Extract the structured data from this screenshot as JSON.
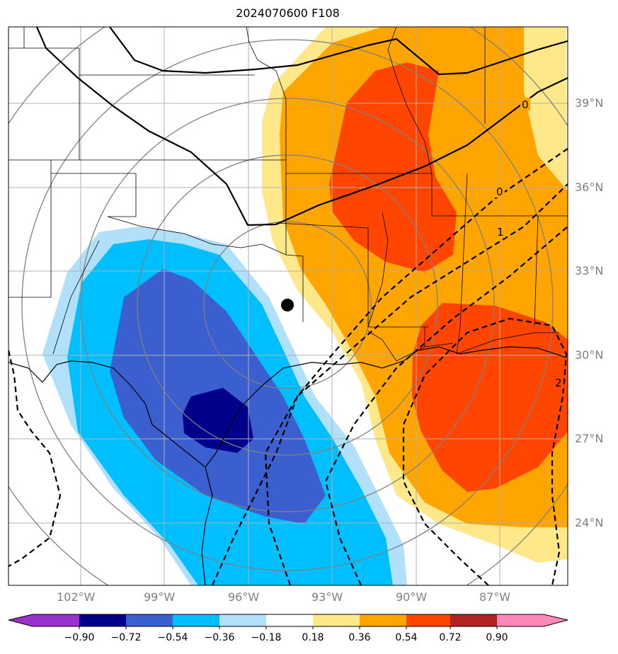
{
  "title": "2024070600 F108",
  "latitude_labels": [
    "39°N",
    "36°N",
    "33°N",
    "30°N",
    "27°N",
    "24°N"
  ],
  "longitude_labels": [
    "102°W",
    "99°W",
    "96°W",
    "93°W",
    "90°W",
    "87°W"
  ],
  "contour_labels": [
    "0",
    "0",
    "1",
    "2"
  ],
  "colorbar": {
    "ticks": [
      "−0.90",
      "−0.72",
      "−0.54",
      "−0.36",
      "−0.18",
      "0.18",
      "0.36",
      "0.54",
      "0.72",
      "0.90"
    ],
    "colors": [
      "#9932cc",
      "#00008b",
      "#3b5fcf",
      "#00bfff",
      "#b0e0fa",
      "#ffffff",
      "#ffe88a",
      "#ffa500",
      "#ff4500",
      "#b22222",
      "#ff88bb"
    ]
  },
  "colors": {
    "grid": "#a9a9a9",
    "range_rings": "#808080",
    "marker": "#000000"
  }
}
